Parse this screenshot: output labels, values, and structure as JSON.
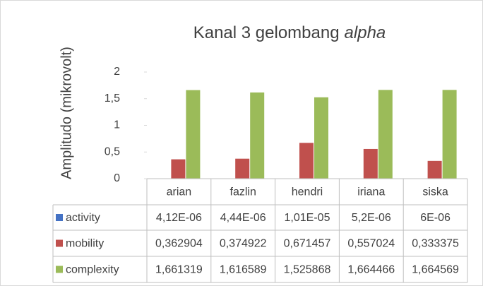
{
  "chart_data": {
    "type": "bar",
    "title": {
      "text": "Kanal 3 gelombang",
      "italic": "alpha"
    },
    "ylabel": "Amplitudo (mikrovolt)",
    "categories": [
      "arian",
      "fazlin",
      "hendri",
      "iriana",
      "siska"
    ],
    "series": [
      {
        "name": "activity",
        "color": "#4472c4",
        "values": [
          4.12e-06,
          4.44e-06,
          1.01e-05,
          5.2e-06,
          6e-06
        ],
        "value_labels": [
          "4,12E-06",
          "4,44E-06",
          "1,01E-05",
          "5,2E-06",
          "6E-06"
        ]
      },
      {
        "name": "mobility",
        "color": "#c0504d",
        "values": [
          0.362904,
          0.374922,
          0.671457,
          0.557024,
          0.333375
        ],
        "value_labels": [
          "0,362904",
          "0,374922",
          "0,671457",
          "0,557024",
          "0,333375"
        ]
      },
      {
        "name": "complexity",
        "color": "#9bbb59",
        "values": [
          1.661319,
          1.616589,
          1.525868,
          1.664466,
          1.664569
        ],
        "value_labels": [
          "1,661319",
          "1,616589",
          "1,525868",
          "1,664466",
          "1,664569"
        ]
      }
    ],
    "ylim": [
      0,
      2
    ],
    "yticks": [
      0,
      {
        "value": 0.5,
        "label": "0,5"
      },
      1,
      {
        "value": 1.5,
        "label": "1,5"
      },
      2
    ],
    "grid": false,
    "data_table": true
  }
}
